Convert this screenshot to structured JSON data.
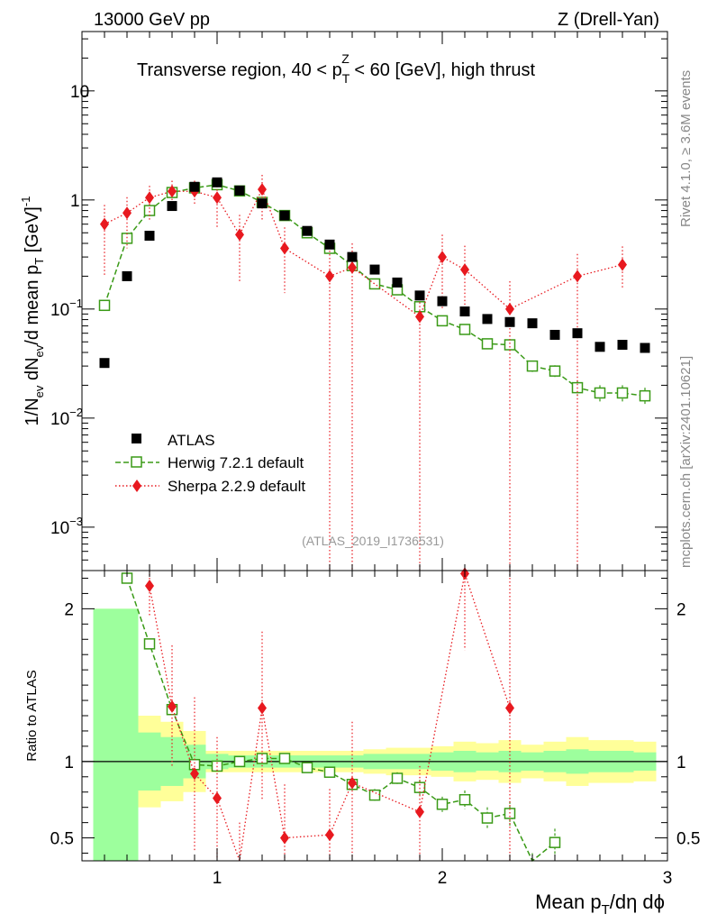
{
  "header": {
    "left_label": "13000 GeV pp",
    "right_label": "Z (Drell-Yan)"
  },
  "side": {
    "rivet": "Rivet 4.1.0, ≥ 3.6M events",
    "mcplots": "mcplots.cern.ch [arXiv:2401.10621]"
  },
  "chart_data": {
    "type": "scatter",
    "title": "Transverse region, 40 < p_T^Z < 60 [GeV], high thrust",
    "title_parts": {
      "prefix": "Transverse region, 40 < p",
      "sub": "T",
      "sup": "Z",
      "suffix": " < 60 [GeV], high thrust"
    },
    "watermark": "(ATLAS_2019_I1736531)",
    "xlabel": {
      "main": "Mean p",
      "sub": "T",
      "rest": "/dη dϕ"
    },
    "ylabel": "1/N_ev dN_ev/d mean p_T [GeV]^-1",
    "ratio_ylabel": "Ratio to ATLAS",
    "xlim": [
      0.4,
      3.0
    ],
    "ylim_log": [
      0.0004,
      35
    ],
    "ratio_ylim": [
      0.35,
      2.25
    ],
    "x_ticks": [
      {
        "v": 1,
        "label": "1"
      },
      {
        "v": 2,
        "label": "2"
      },
      {
        "v": 3,
        "label": "3"
      }
    ],
    "y_ticks": [
      {
        "v": 0.001,
        "base": "10",
        "exp": "−3"
      },
      {
        "v": 0.01,
        "base": "10",
        "exp": "−2"
      },
      {
        "v": 0.1,
        "base": "10",
        "exp": "−1"
      },
      {
        "v": 1,
        "base": "1",
        "exp": ""
      },
      {
        "v": 10,
        "base": "10",
        "exp": ""
      }
    ],
    "ratio_ticks": [
      {
        "v": 0.5,
        "label": "0.5"
      },
      {
        "v": 1,
        "label": "1"
      },
      {
        "v": 2,
        "label": "2"
      }
    ],
    "legend": [
      "ATLAS",
      "Herwig 7.2.1 default",
      "Sherpa 2.2.9 default"
    ],
    "colors": {
      "atlas": "#000000",
      "herwig": "#3a9a17",
      "sherpa": "#e8191f",
      "band_inner": "#9dff9d",
      "band_outer": "#ffff99"
    },
    "series": [
      {
        "name": "ATLAS",
        "x": [
          0.5,
          0.6,
          0.7,
          0.8,
          0.9,
          1.0,
          1.1,
          1.2,
          1.3,
          1.4,
          1.5,
          1.6,
          1.7,
          1.8,
          1.9,
          2.0,
          2.1,
          2.2,
          2.3,
          2.4,
          2.5,
          2.6,
          2.7,
          2.8,
          2.9
        ],
        "y": [
          0.032,
          0.2,
          0.47,
          0.88,
          1.32,
          1.45,
          1.22,
          0.93,
          0.72,
          0.52,
          0.39,
          0.3,
          0.23,
          0.175,
          0.133,
          0.118,
          0.095,
          0.081,
          0.076,
          0.074,
          0.058,
          0.06,
          0.045,
          0.047,
          0.044
        ]
      },
      {
        "name": "Herwig 7.2.1 default",
        "x": [
          0.5,
          0.6,
          0.7,
          0.8,
          0.9,
          1.0,
          1.1,
          1.2,
          1.3,
          1.4,
          1.5,
          1.6,
          1.7,
          1.8,
          1.9,
          2.0,
          2.1,
          2.2,
          2.3,
          2.4,
          2.5,
          2.6,
          2.7,
          2.8,
          2.9
        ],
        "y": [
          0.108,
          0.445,
          0.8,
          1.17,
          1.29,
          1.38,
          1.21,
          0.95,
          0.72,
          0.5,
          0.36,
          0.25,
          0.17,
          0.15,
          0.105,
          0.078,
          0.065,
          0.048,
          0.047,
          0.03,
          0.027,
          0.019,
          0.017,
          0.017,
          0.016
        ],
        "err": [
          0.004,
          0.01,
          0.02,
          0.025,
          0.025,
          0.025,
          0.02,
          0.02,
          0.015,
          0.012,
          0.01,
          0.008,
          0.006,
          0.006,
          0.005,
          0.004,
          0.004,
          0.004,
          0.004,
          0.0035,
          0.0035,
          0.003,
          0.003,
          0.003,
          0.003
        ]
      },
      {
        "name": "Sherpa 2.2.9 default",
        "x": [
          0.5,
          0.6,
          0.7,
          0.8,
          0.9,
          1.0,
          1.1,
          1.2,
          1.3,
          1.4,
          1.5,
          1.6,
          1.7,
          1.8,
          1.9,
          2.0,
          2.1,
          2.2,
          2.3,
          2.4,
          2.5,
          2.6,
          2.7,
          2.8,
          2.9
        ],
        "y": [
          0.6,
          0.76,
          1.05,
          1.2,
          1.2,
          1.05,
          0.48,
          1.25,
          0.36,
          null,
          0.2,
          0.24,
          null,
          null,
          0.085,
          0.3,
          0.23,
          null,
          0.1,
          null,
          null,
          0.2,
          null,
          0.255,
          null
        ],
        "err_lo": [
          0.4,
          0.4,
          0.4,
          0.3,
          0.3,
          0.5,
          0.3,
          0.6,
          0.22,
          null,
          0.2,
          0.24,
          null,
          null,
          0.085,
          0.2,
          0.13,
          null,
          0.1,
          null,
          null,
          0.2,
          null,
          0.1,
          null
        ],
        "err_hi": [
          0.3,
          0.3,
          0.3,
          0.3,
          0.3,
          0.4,
          0.25,
          0.45,
          0.2,
          null,
          0.2,
          0.16,
          null,
          null,
          0.06,
          0.18,
          0.15,
          null,
          0.08,
          null,
          null,
          0.12,
          null,
          0.12,
          null
        ]
      }
    ],
    "ratio_series": [
      {
        "name": "Herwig 7.2.1 default",
        "x": [
          0.6,
          0.7,
          0.8,
          0.9,
          1.0,
          1.1,
          1.2,
          1.3,
          1.4,
          1.5,
          1.6,
          1.7,
          1.8,
          1.9,
          2.0,
          2.1,
          2.2,
          2.3,
          2.4,
          2.5
        ],
        "y": [
          2.2,
          1.77,
          1.34,
          0.98,
          0.97,
          1.0,
          1.02,
          1.02,
          0.96,
          0.93,
          0.85,
          0.78,
          0.89,
          0.83,
          0.72,
          0.75,
          0.63,
          0.66,
          0.35,
          0.47
        ],
        "err": [
          0.03,
          0.03,
          0.03,
          0.02,
          0.02,
          0.02,
          0.02,
          0.02,
          0.02,
          0.03,
          0.03,
          0.04,
          0.04,
          0.05,
          0.05,
          0.06,
          0.07,
          0.08,
          0.05,
          0.09
        ]
      },
      {
        "name": "Sherpa 2.2.9 default",
        "x": [
          0.7,
          0.8,
          0.9,
          1.0,
          1.1,
          1.2,
          1.3,
          1.5,
          1.6,
          1.9,
          2.1,
          2.3
        ],
        "y": [
          2.15,
          1.36,
          0.92,
          0.76,
          0.3,
          1.35,
          0.5,
          0.52,
          0.86,
          0.67,
          2.23,
          1.35
        ],
        "err_lo": [
          0.2,
          0.4,
          0.5,
          0.4,
          0.3,
          0.6,
          0.5,
          0.52,
          0.5,
          0.67,
          0.5,
          1.35
        ],
        "err_hi": [
          0.2,
          0.4,
          0.5,
          0.4,
          0.3,
          0.5,
          0.35,
          0.3,
          0.4,
          0.3,
          0.4,
          1.0
        ]
      }
    ],
    "ratio_band": {
      "edges": [
        0.45,
        0.55,
        0.65,
        0.75,
        0.85,
        0.95,
        1.05,
        1.15,
        1.25,
        1.35,
        1.45,
        1.55,
        1.65,
        1.75,
        1.85,
        1.95,
        2.05,
        2.15,
        2.25,
        2.35,
        2.45,
        2.55,
        2.65,
        2.75,
        2.85,
        2.95
      ],
      "inner": [
        1.0,
        1.0,
        0.19,
        0.16,
        0.11,
        0.05,
        0.04,
        0.04,
        0.04,
        0.04,
        0.04,
        0.04,
        0.05,
        0.05,
        0.05,
        0.06,
        0.07,
        0.06,
        0.07,
        0.06,
        0.07,
        0.08,
        0.07,
        0.07,
        0.06
      ],
      "outer": [
        1.0,
        1.0,
        0.3,
        0.26,
        0.2,
        0.07,
        0.07,
        0.07,
        0.07,
        0.07,
        0.07,
        0.07,
        0.08,
        0.09,
        0.09,
        0.1,
        0.13,
        0.12,
        0.14,
        0.11,
        0.13,
        0.16,
        0.14,
        0.14,
        0.13
      ]
    }
  }
}
